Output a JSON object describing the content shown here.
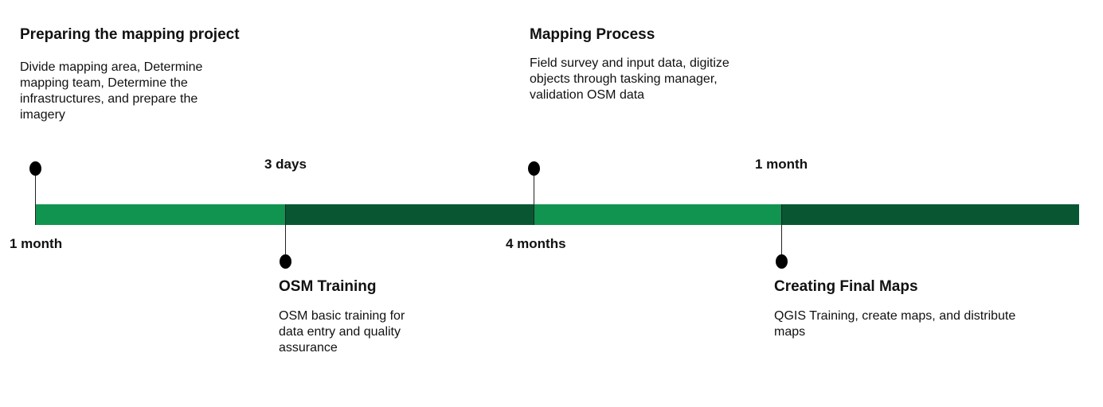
{
  "milestones": [
    {
      "title": "Preparing the mapping project",
      "description": "Divide mapping area, Determine mapping team, Determine the infrastructures, and prepare the imagery",
      "duration": "1 month"
    },
    {
      "title": "OSM Training",
      "description": "OSM basic training for data entry and quality assurance",
      "duration": "3 days"
    },
    {
      "title": "Mapping Process",
      "description": "Field survey and input data, digitize objects through tasking manager, validation OSM data",
      "duration": "4 months"
    },
    {
      "title": "Creating Final Maps",
      "description": "QGIS Training, create maps, and distribute maps",
      "duration": "1 month"
    }
  ],
  "colors": {
    "light_green": "#11944f",
    "dark_green": "#095633",
    "marker": "#000000"
  }
}
